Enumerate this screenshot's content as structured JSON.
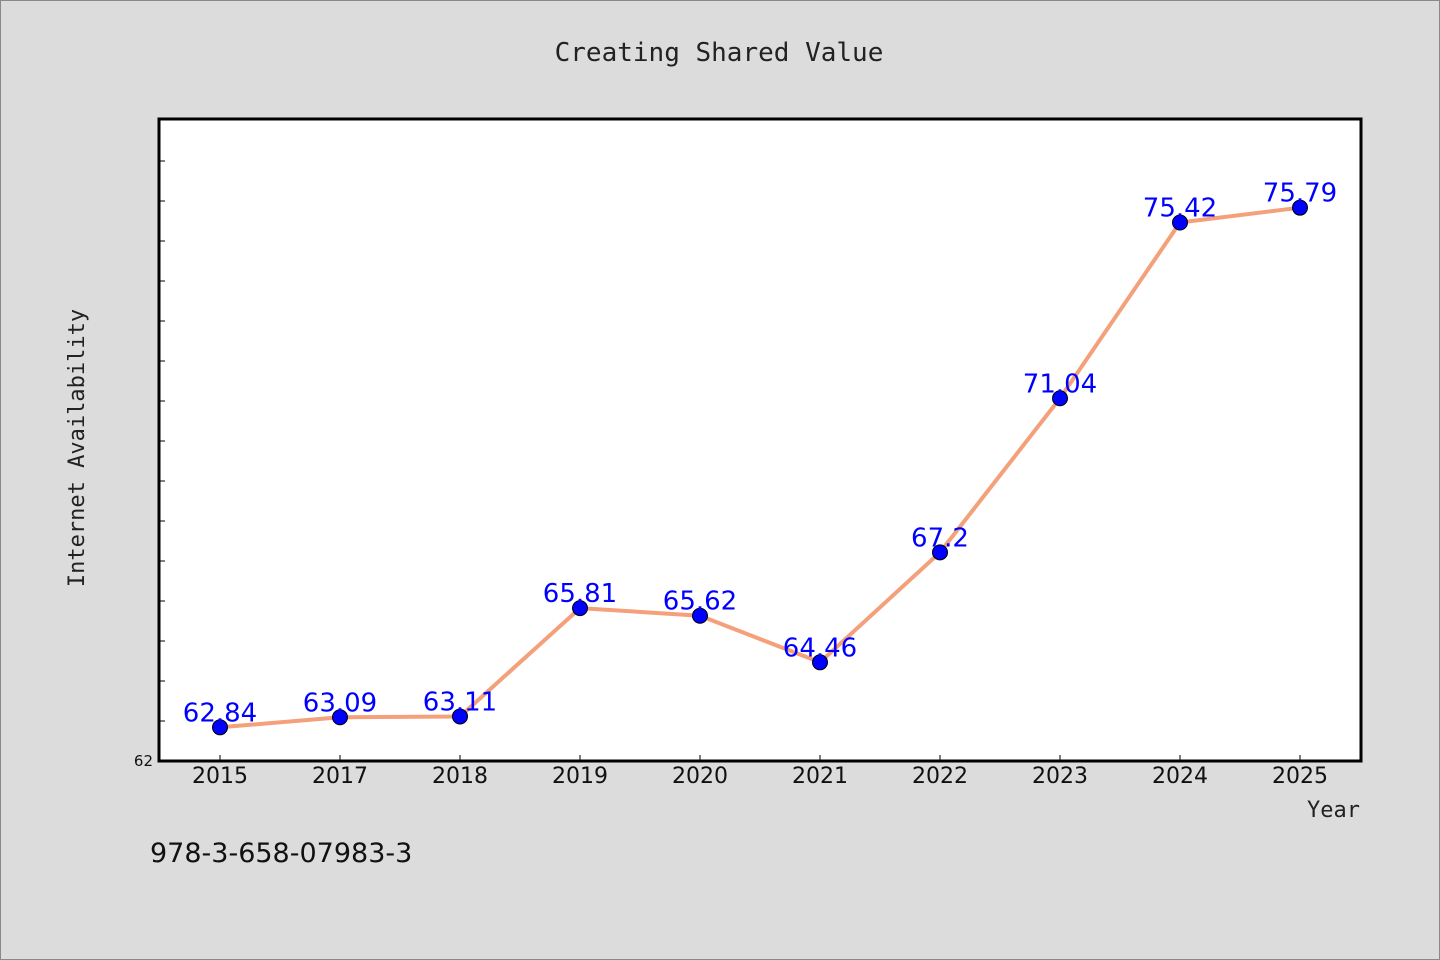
{
  "chart_data": {
    "type": "line",
    "title": "Creating Shared Value",
    "xlabel": "Year",
    "ylabel": "Internet Availability",
    "categories": [
      "2015",
      "2017",
      "2018",
      "2019",
      "2020",
      "2021",
      "2022",
      "2023",
      "2024",
      "2025"
    ],
    "series": [
      {
        "values": [
          62.84,
          63.09,
          63.11,
          65.81,
          65.62,
          64.46,
          67.2,
          71.04,
          75.42,
          75.79
        ]
      }
    ],
    "data_labels": [
      "62.84",
      "63.09",
      "63.11",
      "65.81",
      "65.62",
      "64.46",
      "67.2",
      "71.04",
      "75.42",
      "75.79"
    ],
    "ylim": [
      62,
      78
    ],
    "y_tick_labels": [
      "62"
    ],
    "grid": false,
    "legend": "none",
    "colors": {
      "line": "#f4a07a",
      "marker": "#0000ff",
      "label": "#0000ff",
      "background": "#dcdcdc",
      "plot_bg": "#ffffff"
    }
  },
  "footnote": "978-3-658-07983-3"
}
